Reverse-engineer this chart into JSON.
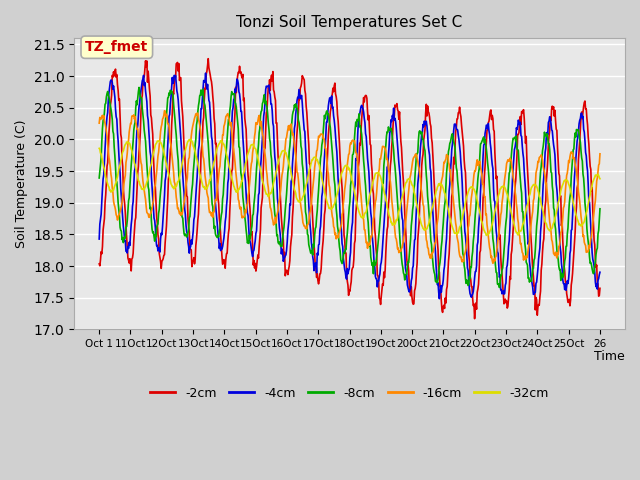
{
  "title": "Tonzi Soil Temperatures Set C",
  "xlabel": "Time",
  "ylabel": "Soil Temperature (C)",
  "ylim": [
    17.0,
    21.6
  ],
  "yticks": [
    17.0,
    17.5,
    18.0,
    18.5,
    19.0,
    19.5,
    20.0,
    20.5,
    21.0,
    21.5
  ],
  "plot_bg": "#e8e8e8",
  "fig_bg": "#d0d0d0",
  "grid_color": "white",
  "annotation_text": "TZ_fmet",
  "annotation_bg": "#ffffcc",
  "annotation_fg": "#cc0000",
  "series_colors": {
    "-2cm": "#dd0000",
    "-4cm": "#0000dd",
    "-8cm": "#00aa00",
    "-16cm": "#ff8800",
    "-32cm": "#dddd00"
  },
  "legend_labels": [
    "-2cm",
    "-4cm",
    "-8cm",
    "-16cm",
    "-32cm"
  ],
  "xtick_labels": [
    "Oct 1",
    "11Oct",
    "12Oct",
    "13Oct",
    "14Oct",
    "15Oct",
    "16Oct",
    "17Oct",
    "18Oct",
    "19Oct",
    "20Oct",
    "21Oct",
    "22Oct",
    "23Oct",
    "24Oct",
    "25Oct",
    "26"
  ],
  "n_days": 16,
  "pts_per_day": 48
}
